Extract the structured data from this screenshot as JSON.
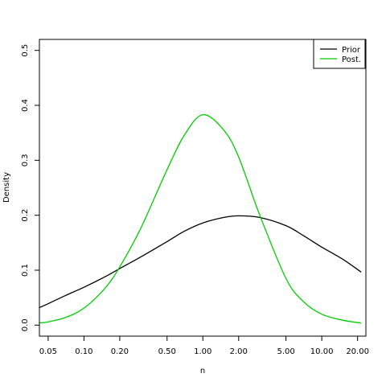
{
  "chart_data": {
    "type": "line",
    "xlabel": "n",
    "ylabel": "Density",
    "x_scale": "log",
    "xlim": [
      0.0422,
      23.5
    ],
    "ylim": [
      -0.02,
      0.52
    ],
    "x_ticks": [
      0.05,
      0.1,
      0.2,
      0.5,
      1,
      2,
      5,
      10,
      20
    ],
    "x_tick_labels": [
      "0.05",
      "0.10",
      "0.20",
      "0.50",
      "1.00",
      "2.00",
      "5.00",
      "10.00",
      "20.00"
    ],
    "y_ticks": [
      0.0,
      0.1,
      0.2,
      0.3,
      0.4,
      0.5
    ],
    "y_tick_labels": [
      "0.0",
      "0.1",
      "0.2",
      "0.3",
      "0.4",
      "0.5"
    ],
    "grid": false,
    "legend_position": "top-right",
    "series": [
      {
        "name": "Prior",
        "color": "#000000",
        "x": [
          0.0422,
          0.05,
          0.07,
          0.1,
          0.15,
          0.2,
          0.3,
          0.5,
          0.7,
          1.0,
          1.5,
          2.0,
          3.0,
          5.0,
          7.0,
          10.0,
          15.0,
          21.3
        ],
        "y": [
          0.032,
          0.039,
          0.054,
          0.069,
          0.088,
          0.103,
          0.124,
          0.152,
          0.171,
          0.186,
          0.196,
          0.199,
          0.196,
          0.181,
          0.163,
          0.142,
          0.12,
          0.097
        ]
      },
      {
        "name": "Post.",
        "color": "#00cc00",
        "x": [
          0.0422,
          0.05,
          0.07,
          0.1,
          0.15,
          0.2,
          0.3,
          0.5,
          0.7,
          1.0,
          1.5,
          2.0,
          3.0,
          5.0,
          7.0,
          10.0,
          15.0,
          21.3
        ],
        "y": [
          0.004,
          0.006,
          0.014,
          0.031,
          0.067,
          0.106,
          0.176,
          0.283,
          0.346,
          0.383,
          0.355,
          0.306,
          0.201,
          0.085,
          0.043,
          0.02,
          0.009,
          0.004
        ]
      }
    ]
  }
}
